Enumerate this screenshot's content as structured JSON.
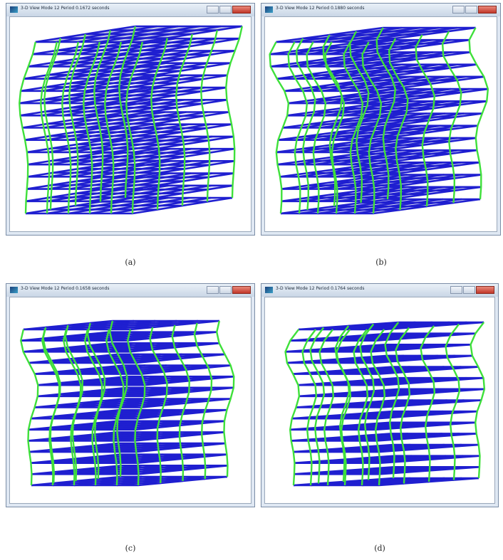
{
  "windows": [
    {
      "title": "3-D View  Mode 12  Period 0.1672 seconds",
      "caption": "(a)"
    },
    {
      "title": "3-D View  Mode 12  Period 0.1880 seconds",
      "caption": "(b)"
    },
    {
      "title": "3-D View  Mode 12  Period 0.1658 seconds",
      "caption": "(c)"
    },
    {
      "title": "3-D View  Mode 12  Period 0.1764 seconds",
      "caption": "(d)"
    }
  ]
}
